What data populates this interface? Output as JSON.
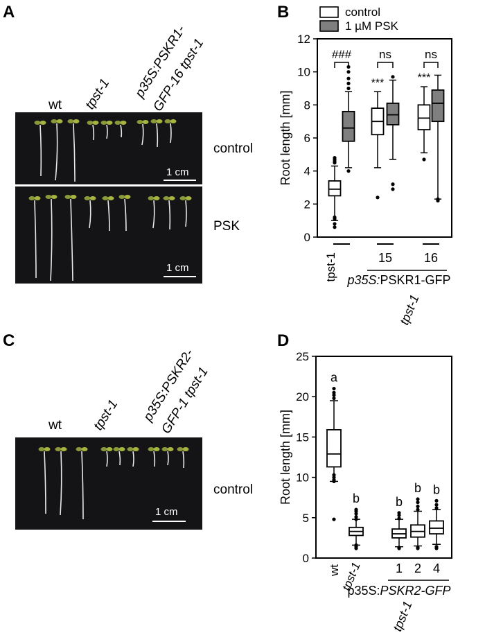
{
  "panels": {
    "A": {
      "letter": "A",
      "genotypes": [
        "wt",
        "tpst-1",
        "p35S:PSKR1-",
        "GFP-16 tpst-1"
      ],
      "conditions": [
        "control",
        "PSK"
      ],
      "scale_label": "1 cm"
    },
    "C": {
      "letter": "C",
      "genotypes": [
        "wt",
        "tpst-1",
        "p35S:PSKR2-",
        "GFP-1 tpst-1"
      ],
      "conditions": [
        "control"
      ],
      "scale_label": "1 cm"
    }
  },
  "chart_data": [
    {
      "panel": "B",
      "type": "box",
      "ylabel": "Root length [mm]",
      "ylim": [
        0,
        12
      ],
      "yticks": [
        "0",
        "2",
        "4",
        "6",
        "8",
        "10",
        "12"
      ],
      "legend": {
        "position": "top",
        "entries": [
          "control",
          "1 µM PSK"
        ],
        "colors": [
          "#ffffff",
          "#7f7f7f"
        ]
      },
      "groups": [
        "tpst-1",
        "15",
        "16"
      ],
      "group_annotation": {
        "line_label": "p35S:PSKR1-GFP",
        "sub_label": "tpst-1"
      },
      "series": [
        {
          "name": "control",
          "boxes": [
            {
              "min": 1.0,
              "q1": 2.5,
              "median": 2.9,
              "q3": 3.4,
              "max": 4.3,
              "outliers": [
                0.6,
                0.8,
                1.1,
                1.2,
                4.5,
                4.6,
                4.7,
                4.8
              ]
            },
            {
              "min": 4.2,
              "q1": 6.2,
              "median": 7.0,
              "q3": 7.8,
              "max": 8.8,
              "outliers": [
                2.4
              ]
            },
            {
              "min": 5.1,
              "q1": 6.5,
              "median": 7.2,
              "q3": 8.0,
              "max": 9.1,
              "outliers": [
                4.7
              ]
            }
          ]
        },
        {
          "name": "1 µM PSK",
          "boxes": [
            {
              "min": 4.2,
              "q1": 5.8,
              "median": 6.6,
              "q3": 7.6,
              "max": 8.8,
              "outliers": [
                4.0,
                9.0,
                9.3,
                9.6,
                10.0,
                10.3
              ]
            },
            {
              "min": 4.7,
              "q1": 6.8,
              "median": 7.4,
              "q3": 8.1,
              "max": 9.5,
              "outliers": [
                2.9,
                3.2,
                9.7
              ]
            },
            {
              "min": 2.3,
              "q1": 7.0,
              "median": 8.1,
              "q3": 8.9,
              "max": 9.8,
              "outliers": [
                2.2,
                2.3
              ]
            }
          ]
        }
      ],
      "annotations": {
        "pair_labels": [
          "###",
          "ns",
          "ns"
        ],
        "control_stars": [
          "",
          "***",
          "***"
        ]
      }
    },
    {
      "panel": "D",
      "type": "box",
      "ylabel": "Root length [mm]",
      "ylim": [
        0,
        25
      ],
      "yticks": [
        "0",
        "5",
        "10",
        "15",
        "20",
        "25"
      ],
      "categories": [
        "wt",
        "tpst-1",
        "1",
        "2",
        "4"
      ],
      "group_annotation": {
        "line_label": "p35S:PSKR2-GFP",
        "sub_label": "tpst-1"
      },
      "letters": [
        "a",
        "b",
        "b",
        "b",
        "b"
      ],
      "boxes": [
        {
          "min": 9.5,
          "q1": 11.3,
          "median": 12.9,
          "q3": 15.9,
          "max": 19.5,
          "outliers": [
            4.8,
            9.5,
            9.7,
            10.0,
            10.3,
            19.8,
            20.2,
            20.5,
            21.0
          ]
        },
        {
          "min": 1.6,
          "q1": 2.8,
          "median": 3.3,
          "q3": 3.8,
          "max": 4.8,
          "outliers": [
            1.2,
            1.4,
            1.6,
            4.8,
            5.1,
            5.5,
            5.8,
            6.0
          ]
        },
        {
          "min": 1.4,
          "q1": 2.5,
          "median": 3.0,
          "q3": 3.6,
          "max": 4.8,
          "outliers": [
            1.2,
            1.3,
            4.9,
            5.3,
            5.6
          ]
        },
        {
          "min": 1.5,
          "q1": 2.6,
          "median": 3.3,
          "q3": 4.1,
          "max": 5.8,
          "outliers": [
            1.2,
            1.3,
            6.0,
            6.4,
            6.9,
            7.3
          ]
        },
        {
          "min": 1.7,
          "q1": 3.0,
          "median": 3.7,
          "q3": 4.6,
          "max": 6.0,
          "outliers": [
            1.2,
            1.4,
            6.2,
            6.6,
            7.1
          ]
        }
      ]
    }
  ]
}
